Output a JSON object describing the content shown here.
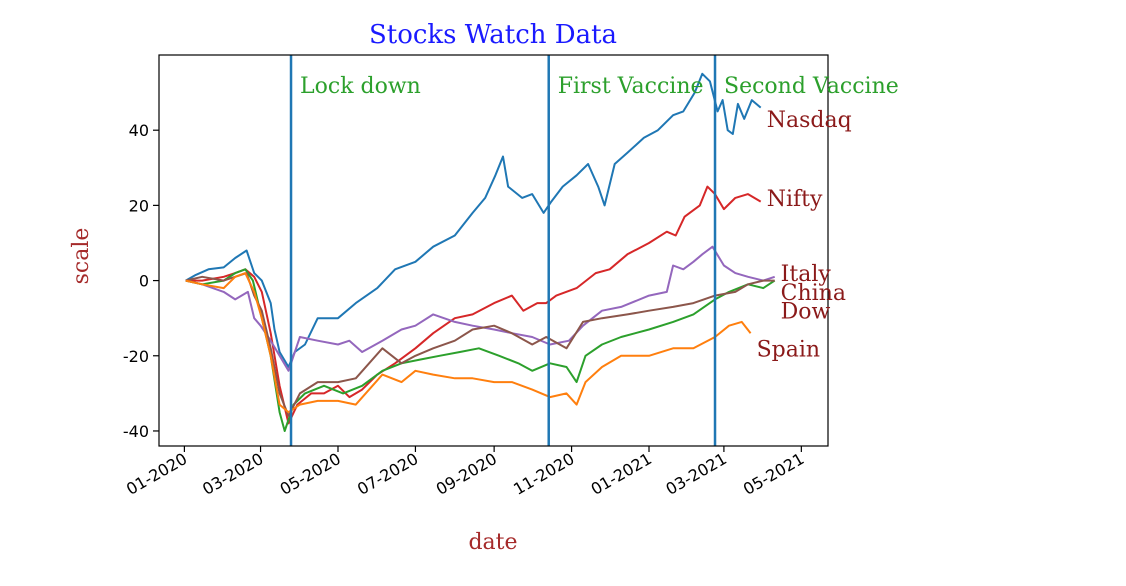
{
  "chart_data": {
    "type": "line",
    "title": "Stocks Watch Data",
    "xlabel": "date",
    "ylabel": "scale",
    "xlim": [
      "2019-12-12",
      "2021-05-22"
    ],
    "ylim": [
      -44,
      60
    ],
    "yticks": [
      -40,
      -20,
      0,
      20,
      40
    ],
    "xticks": [
      {
        "date": "2020-01-01",
        "label": "01-2020"
      },
      {
        "date": "2020-03-01",
        "label": "03-2020"
      },
      {
        "date": "2020-05-01",
        "label": "05-2020"
      },
      {
        "date": "2020-07-01",
        "label": "07-2020"
      },
      {
        "date": "2020-09-01",
        "label": "09-2020"
      },
      {
        "date": "2020-11-01",
        "label": "11-2020"
      },
      {
        "date": "2021-01-01",
        "label": "01-2021"
      },
      {
        "date": "2021-03-01",
        "label": "03-2021"
      },
      {
        "date": "2021-05-01",
        "label": "05-2021"
      }
    ],
    "grid": false,
    "legend": "none",
    "colors": {
      "title": "#1a1aff",
      "axis_label": "#a52a2a",
      "annotation": "#2ca02c",
      "series_label": "#8b1a1a",
      "event_line": "#1f77b4"
    },
    "annotations": [
      {
        "date": "2020-03-25",
        "label": "Lock down"
      },
      {
        "date": "2020-10-14",
        "label": "First Vaccine"
      },
      {
        "date": "2021-02-22",
        "label": "Second Vaccine"
      }
    ],
    "series": [
      {
        "name": "Nasdaq",
        "color": "#1f77b4",
        "label_value": 43,
        "points": [
          [
            "2020-01-02",
            0
          ],
          [
            "2020-01-10",
            1.5
          ],
          [
            "2020-01-20",
            3
          ],
          [
            "2020-02-01",
            3.5
          ],
          [
            "2020-02-10",
            6
          ],
          [
            "2020-02-19",
            8
          ],
          [
            "2020-02-25",
            2
          ],
          [
            "2020-03-02",
            0
          ],
          [
            "2020-03-09",
            -6
          ],
          [
            "2020-03-12",
            -13
          ],
          [
            "2020-03-16",
            -19
          ],
          [
            "2020-03-23",
            -23
          ],
          [
            "2020-03-28",
            -19
          ],
          [
            "2020-04-05",
            -17
          ],
          [
            "2020-04-15",
            -10
          ],
          [
            "2020-05-01",
            -10
          ],
          [
            "2020-05-15",
            -6
          ],
          [
            "2020-06-01",
            -2
          ],
          [
            "2020-06-15",
            3
          ],
          [
            "2020-07-01",
            5
          ],
          [
            "2020-07-15",
            9
          ],
          [
            "2020-08-01",
            12
          ],
          [
            "2020-08-15",
            18
          ],
          [
            "2020-08-25",
            22
          ],
          [
            "2020-09-02",
            28
          ],
          [
            "2020-09-08",
            33
          ],
          [
            "2020-09-12",
            25
          ],
          [
            "2020-09-23",
            22
          ],
          [
            "2020-10-01",
            23
          ],
          [
            "2020-10-10",
            18
          ],
          [
            "2020-10-16",
            21
          ],
          [
            "2020-10-25",
            25
          ],
          [
            "2020-11-05",
            28
          ],
          [
            "2020-11-14",
            31
          ],
          [
            "2020-11-22",
            25
          ],
          [
            "2020-11-27",
            20
          ],
          [
            "2020-12-05",
            31
          ],
          [
            "2020-12-15",
            34
          ],
          [
            "2020-12-28",
            38
          ],
          [
            "2021-01-08",
            40
          ],
          [
            "2021-01-20",
            44
          ],
          [
            "2021-01-28",
            45
          ],
          [
            "2021-02-06",
            50
          ],
          [
            "2021-02-12",
            55
          ],
          [
            "2021-02-18",
            53
          ],
          [
            "2021-02-24",
            45
          ],
          [
            "2021-02-28",
            48
          ],
          [
            "2021-03-04",
            40
          ],
          [
            "2021-03-08",
            39
          ],
          [
            "2021-03-12",
            47
          ],
          [
            "2021-03-17",
            43
          ],
          [
            "2021-03-23",
            48
          ],
          [
            "2021-03-30",
            46
          ]
        ]
      },
      {
        "name": "Nifty",
        "color": "#d62728",
        "label_value": 22,
        "points": [
          [
            "2020-01-02",
            0
          ],
          [
            "2020-01-15",
            0
          ],
          [
            "2020-02-01",
            1
          ],
          [
            "2020-02-10",
            2
          ],
          [
            "2020-02-18",
            3
          ],
          [
            "2020-02-25",
            1
          ],
          [
            "2020-03-02",
            -3
          ],
          [
            "2020-03-09",
            -14
          ],
          [
            "2020-03-16",
            -28
          ],
          [
            "2020-03-23",
            -38
          ],
          [
            "2020-03-30",
            -33
          ],
          [
            "2020-04-10",
            -30
          ],
          [
            "2020-04-20",
            -30
          ],
          [
            "2020-05-01",
            -28
          ],
          [
            "2020-05-10",
            -31
          ],
          [
            "2020-05-20",
            -29
          ],
          [
            "2020-06-01",
            -25
          ],
          [
            "2020-06-15",
            -22
          ],
          [
            "2020-07-01",
            -18
          ],
          [
            "2020-07-15",
            -14
          ],
          [
            "2020-08-01",
            -10
          ],
          [
            "2020-08-15",
            -9
          ],
          [
            "2020-09-01",
            -6
          ],
          [
            "2020-09-15",
            -4
          ],
          [
            "2020-09-24",
            -8
          ],
          [
            "2020-10-05",
            -6
          ],
          [
            "2020-10-12",
            -6
          ],
          [
            "2020-10-20",
            -4
          ],
          [
            "2020-11-05",
            -2
          ],
          [
            "2020-11-20",
            2
          ],
          [
            "2020-12-01",
            3
          ],
          [
            "2020-12-15",
            7
          ],
          [
            "2021-01-01",
            10
          ],
          [
            "2021-01-15",
            13
          ],
          [
            "2021-01-22",
            12
          ],
          [
            "2021-01-29",
            17
          ],
          [
            "2021-02-10",
            20
          ],
          [
            "2021-02-16",
            25
          ],
          [
            "2021-02-22",
            23
          ],
          [
            "2021-03-01",
            19
          ],
          [
            "2021-03-10",
            22
          ],
          [
            "2021-03-20",
            23
          ],
          [
            "2021-03-30",
            21
          ]
        ]
      },
      {
        "name": "Italy",
        "color": "#9467bd",
        "label_value": 2,
        "points": [
          [
            "2020-01-02",
            0
          ],
          [
            "2020-01-15",
            -1
          ],
          [
            "2020-02-01",
            -3
          ],
          [
            "2020-02-10",
            -5
          ],
          [
            "2020-02-20",
            -3
          ],
          [
            "2020-02-25",
            -10
          ],
          [
            "2020-03-01",
            -12
          ],
          [
            "2020-03-09",
            -16
          ],
          [
            "2020-03-16",
            -20
          ],
          [
            "2020-03-23",
            -24
          ],
          [
            "2020-04-01",
            -15
          ],
          [
            "2020-04-15",
            -16
          ],
          [
            "2020-05-01",
            -17
          ],
          [
            "2020-05-10",
            -16
          ],
          [
            "2020-05-20",
            -19
          ],
          [
            "2020-06-05",
            -16
          ],
          [
            "2020-06-20",
            -13
          ],
          [
            "2020-07-01",
            -12
          ],
          [
            "2020-07-15",
            -9
          ],
          [
            "2020-08-01",
            -11
          ],
          [
            "2020-08-15",
            -12
          ],
          [
            "2020-09-01",
            -13
          ],
          [
            "2020-09-15",
            -14
          ],
          [
            "2020-10-01",
            -15
          ],
          [
            "2020-10-15",
            -17
          ],
          [
            "2020-10-30",
            -16
          ],
          [
            "2020-11-10",
            -12
          ],
          [
            "2020-11-25",
            -8
          ],
          [
            "2020-12-10",
            -7
          ],
          [
            "2021-01-01",
            -4
          ],
          [
            "2021-01-15",
            -3
          ],
          [
            "2021-01-20",
            4
          ],
          [
            "2021-01-28",
            3
          ],
          [
            "2021-02-05",
            5
          ],
          [
            "2021-02-12",
            7
          ],
          [
            "2021-02-20",
            9
          ],
          [
            "2021-03-01",
            4
          ],
          [
            "2021-03-10",
            2
          ],
          [
            "2021-03-20",
            1
          ],
          [
            "2021-04-01",
            0
          ],
          [
            "2021-04-10",
            1
          ]
        ]
      },
      {
        "name": "China",
        "color": "#2ca02c",
        "label_value": -3,
        "points": [
          [
            "2020-01-02",
            0
          ],
          [
            "2020-01-15",
            -1
          ],
          [
            "2020-02-01",
            0
          ],
          [
            "2020-02-10",
            2
          ],
          [
            "2020-02-18",
            3
          ],
          [
            "2020-02-24",
            0
          ],
          [
            "2020-03-02",
            -10
          ],
          [
            "2020-03-09",
            -20
          ],
          [
            "2020-03-16",
            -35
          ],
          [
            "2020-03-20",
            -40
          ],
          [
            "2020-03-27",
            -33
          ],
          [
            "2020-04-05",
            -30
          ],
          [
            "2020-04-20",
            -28
          ],
          [
            "2020-05-05",
            -30
          ],
          [
            "2020-05-20",
            -28
          ],
          [
            "2020-06-05",
            -24
          ],
          [
            "2020-06-20",
            -22
          ],
          [
            "2020-07-05",
            -21
          ],
          [
            "2020-07-20",
            -20
          ],
          [
            "2020-08-05",
            -19
          ],
          [
            "2020-08-20",
            -18
          ],
          [
            "2020-09-05",
            -20
          ],
          [
            "2020-09-20",
            -22
          ],
          [
            "2020-10-01",
            -24
          ],
          [
            "2020-10-15",
            -22
          ],
          [
            "2020-10-28",
            -23
          ],
          [
            "2020-11-05",
            -27
          ],
          [
            "2020-11-12",
            -20
          ],
          [
            "2020-11-25",
            -17
          ],
          [
            "2020-12-10",
            -15
          ],
          [
            "2021-01-01",
            -13
          ],
          [
            "2021-01-20",
            -11
          ],
          [
            "2021-02-05",
            -9
          ],
          [
            "2021-02-22",
            -5
          ],
          [
            "2021-03-05",
            -3
          ],
          [
            "2021-03-20",
            -1
          ],
          [
            "2021-04-01",
            -2
          ],
          [
            "2021-04-10",
            0
          ]
        ]
      },
      {
        "name": "Dow",
        "color": "#8c564b",
        "label_value": -8,
        "points": [
          [
            "2020-01-02",
            0
          ],
          [
            "2020-01-15",
            1
          ],
          [
            "2020-02-01",
            0
          ],
          [
            "2020-02-10",
            1
          ],
          [
            "2020-02-19",
            2
          ],
          [
            "2020-02-25",
            -4
          ],
          [
            "2020-03-02",
            -8
          ],
          [
            "2020-03-09",
            -18
          ],
          [
            "2020-03-16",
            -30
          ],
          [
            "2020-03-23",
            -36
          ],
          [
            "2020-04-01",
            -30
          ],
          [
            "2020-04-15",
            -27
          ],
          [
            "2020-05-01",
            -27
          ],
          [
            "2020-05-15",
            -26
          ],
          [
            "2020-06-05",
            -18
          ],
          [
            "2020-06-20",
            -22
          ],
          [
            "2020-07-01",
            -20
          ],
          [
            "2020-07-15",
            -18
          ],
          [
            "2020-08-01",
            -16
          ],
          [
            "2020-08-15",
            -13
          ],
          [
            "2020-09-01",
            -12
          ],
          [
            "2020-09-15",
            -14
          ],
          [
            "2020-10-01",
            -17
          ],
          [
            "2020-10-12",
            -15
          ],
          [
            "2020-10-28",
            -18
          ],
          [
            "2020-11-10",
            -11
          ],
          [
            "2020-11-25",
            -10
          ],
          [
            "2020-12-15",
            -9
          ],
          [
            "2021-01-01",
            -8
          ],
          [
            "2021-01-20",
            -7
          ],
          [
            "2021-02-05",
            -6
          ],
          [
            "2021-02-22",
            -4
          ],
          [
            "2021-03-10",
            -3
          ],
          [
            "2021-03-20",
            -1
          ],
          [
            "2021-04-01",
            0
          ],
          [
            "2021-04-10",
            0
          ]
        ]
      },
      {
        "name": "Spain",
        "color": "#ff7f0e",
        "label_value": -18,
        "points": [
          [
            "2020-01-02",
            0
          ],
          [
            "2020-01-15",
            -1
          ],
          [
            "2020-02-01",
            -2
          ],
          [
            "2020-02-10",
            1
          ],
          [
            "2020-02-18",
            2
          ],
          [
            "2020-02-25",
            -3
          ],
          [
            "2020-03-02",
            -10
          ],
          [
            "2020-03-09",
            -20
          ],
          [
            "2020-03-16",
            -33
          ],
          [
            "2020-03-23",
            -35
          ],
          [
            "2020-04-01",
            -33
          ],
          [
            "2020-04-15",
            -32
          ],
          [
            "2020-05-01",
            -32
          ],
          [
            "2020-05-15",
            -33
          ],
          [
            "2020-06-05",
            -25
          ],
          [
            "2020-06-20",
            -27
          ],
          [
            "2020-07-01",
            -24
          ],
          [
            "2020-07-15",
            -25
          ],
          [
            "2020-08-01",
            -26
          ],
          [
            "2020-08-15",
            -26
          ],
          [
            "2020-09-01",
            -27
          ],
          [
            "2020-09-15",
            -27
          ],
          [
            "2020-10-01",
            -29
          ],
          [
            "2020-10-15",
            -31
          ],
          [
            "2020-10-28",
            -30
          ],
          [
            "2020-11-05",
            -33
          ],
          [
            "2020-11-12",
            -27
          ],
          [
            "2020-11-25",
            -23
          ],
          [
            "2020-12-10",
            -20
          ],
          [
            "2021-01-01",
            -20
          ],
          [
            "2021-01-20",
            -18
          ],
          [
            "2021-02-05",
            -18
          ],
          [
            "2021-02-22",
            -15
          ],
          [
            "2021-03-05",
            -12
          ],
          [
            "2021-03-15",
            -11
          ],
          [
            "2021-03-22",
            -14
          ]
        ]
      }
    ]
  }
}
